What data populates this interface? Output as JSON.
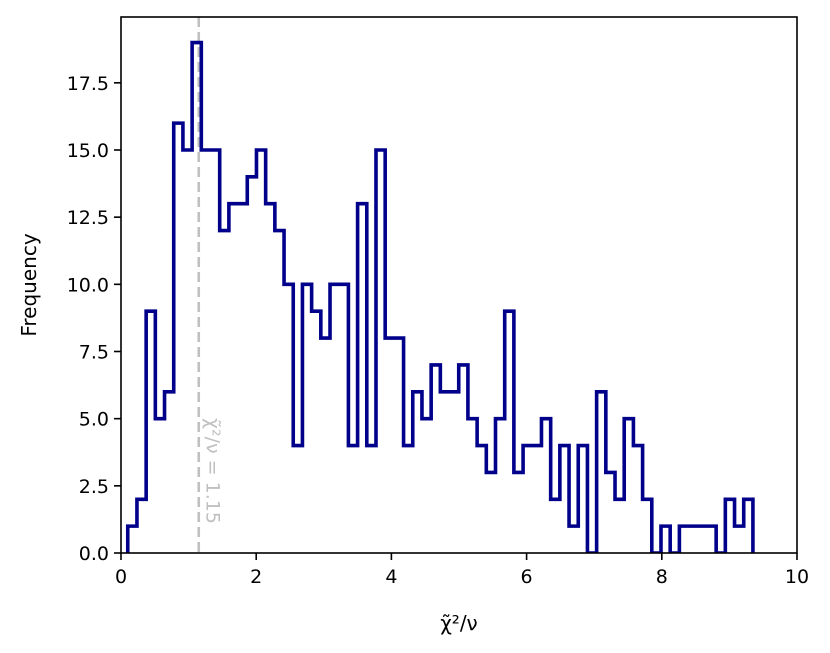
{
  "chart_data": {
    "type": "bar",
    "histtype": "step",
    "bin_width": 0.136,
    "x_start": 0.1,
    "counts": [
      1,
      2,
      9,
      5,
      6,
      16,
      15,
      19,
      15,
      15,
      12,
      13,
      13,
      14,
      15,
      13,
      12,
      10,
      4,
      10,
      9,
      8,
      10,
      10,
      4,
      13,
      4,
      15,
      8,
      8,
      4,
      6,
      5,
      7,
      6,
      6,
      7,
      5,
      4,
      3,
      5,
      9,
      3,
      4,
      4,
      5,
      2,
      4,
      1,
      4,
      0,
      6,
      3,
      2,
      5,
      4,
      2,
      0,
      1,
      0,
      1,
      1,
      1,
      1,
      0,
      2,
      1,
      2
    ],
    "xlabel": "χ̃²/ν",
    "ylabel": "Frequency",
    "xlim": [
      0,
      10
    ],
    "ylim": [
      0,
      19.95
    ],
    "xticks": [
      0,
      2,
      4,
      6,
      8,
      10
    ],
    "xtick_labels": [
      "0",
      "2",
      "4",
      "6",
      "8",
      "10"
    ],
    "yticks": [
      0,
      2.5,
      5,
      7.5,
      10,
      12.5,
      15,
      17.5
    ],
    "ytick_labels": [
      "0.0",
      "2.5",
      "5.0",
      "7.5",
      "10.0",
      "12.5",
      "15.0",
      "17.5"
    ],
    "step_color": "#00008b",
    "reference_line": {
      "x": 1.15,
      "label": "χ̃²/ν = 1.15",
      "color": "#c0c0c0",
      "style": "dashed"
    },
    "grid": false
  }
}
